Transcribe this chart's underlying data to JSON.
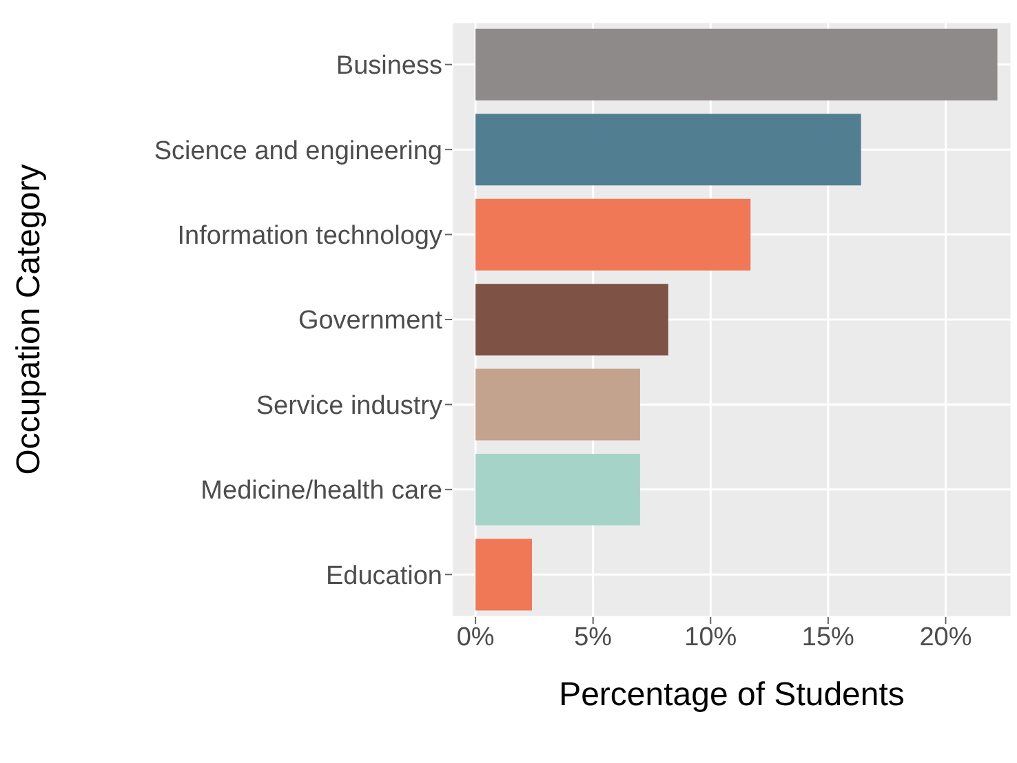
{
  "chart_data": {
    "type": "bar",
    "orientation": "horizontal",
    "xlabel": "Percentage of Students",
    "ylabel": "Occupation Category",
    "categories": [
      "Business",
      "Science and engineering",
      "Information technology",
      "Government",
      "Service industry",
      "Medicine/health care",
      "Education"
    ],
    "values": [
      22.2,
      16.4,
      11.7,
      8.2,
      7.0,
      7.0,
      2.4
    ],
    "colors": [
      "#8f8a8a",
      "#517e90",
      "#f17856",
      "#7f5246",
      "#c3a28e",
      "#a5d3c8",
      "#f17856"
    ],
    "xlim": [
      -1,
      22.8
    ],
    "xticks": [
      {
        "value": 0,
        "label": "0%"
      },
      {
        "value": 5,
        "label": "5%"
      },
      {
        "value": 10,
        "label": "10%"
      },
      {
        "value": 15,
        "label": "15%"
      },
      {
        "value": 20,
        "label": "20%"
      }
    ],
    "grid": true
  }
}
